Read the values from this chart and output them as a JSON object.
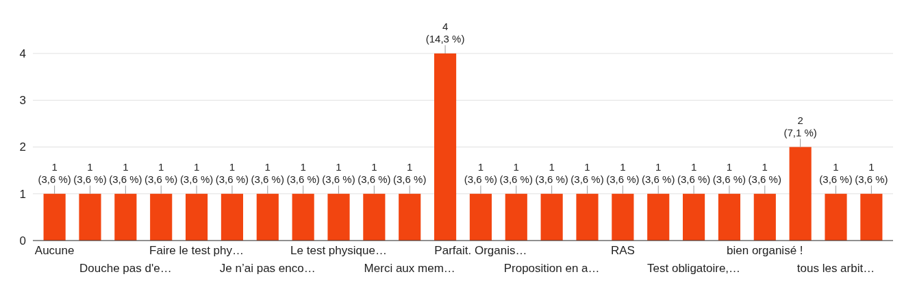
{
  "chart_data": {
    "type": "bar",
    "categories": [
      "Aucune",
      null,
      "Douche pas d'e…",
      null,
      "Faire le test phy…",
      null,
      "Je n’ai pas enco…",
      null,
      "Le test physique…",
      null,
      "Merci aux mem…",
      null,
      "Parfait. Organis…",
      null,
      "Proposition en a…",
      null,
      "RAS",
      null,
      "Test obligatoire,…",
      null,
      "bien organisé !",
      null,
      "tous les arbit…",
      null
    ],
    "values": [
      1,
      1,
      1,
      1,
      1,
      1,
      1,
      1,
      1,
      1,
      1,
      4,
      1,
      1,
      1,
      1,
      1,
      1,
      1,
      1,
      1,
      2,
      1,
      1
    ],
    "value_labels": [
      "1 (3,6 %)",
      "1 (3,6 %)",
      "1 (3,6 %)",
      "1 (3,6 %)",
      "1 (3,6 %)",
      "1 (3,6 %)",
      "1 (3,6 %)",
      "1 (3,6 %)",
      "1 (3,6 %)",
      "1 (3,6 %)",
      "1 (3,6 %)",
      "4 (14,3 %)",
      "1 (3,6 %)",
      "1 (3,6 %)",
      "1 (3,6 %)",
      "1 (3,6 %)",
      "1 (3,6 %)",
      "1 (3,6 %)",
      "1 (3,6 %)",
      "1 (3,6 %)",
      "1 (3,6 %)",
      "2 (7,1 %)",
      "1 (3,6 %)",
      "1 (3,6 %)"
    ],
    "color": "#f24510",
    "ylim": [
      0,
      4
    ],
    "yticks": [
      0,
      1,
      2,
      3,
      4
    ],
    "grid": "y"
  }
}
